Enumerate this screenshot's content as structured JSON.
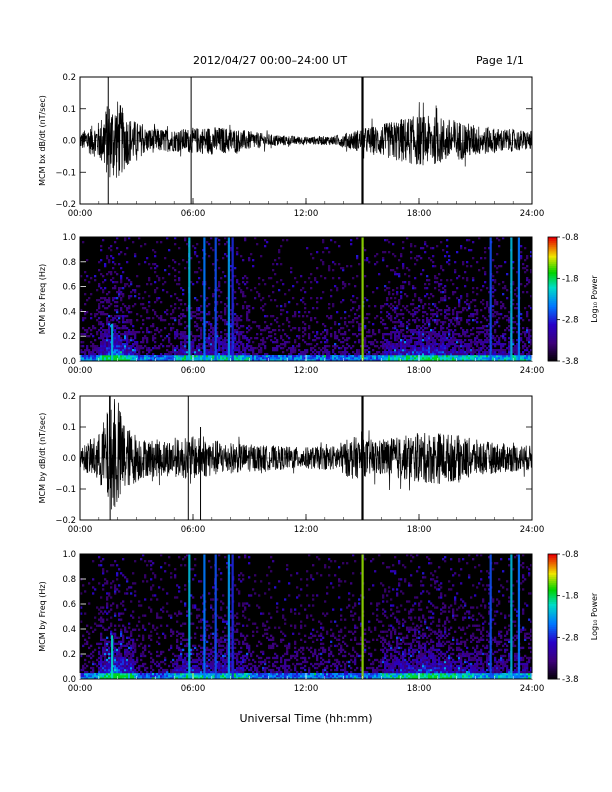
{
  "header": {
    "date_range": "2012/04/27  00:00–24:00 UT",
    "page": "Page 1/1"
  },
  "chart_data": [
    {
      "type": "line",
      "title": "",
      "ylabel": "MCM bx dB/dt (nT/sec)",
      "xlabel": "",
      "xlim": [
        "00:00",
        "24:00"
      ],
      "xticks": [
        "00:00",
        "06:00",
        "12:00",
        "18:00",
        "24:00"
      ],
      "ylim": [
        -0.2,
        0.2
      ],
      "yticks": [
        "0.2",
        "0.1",
        "0.0",
        "−0.1",
        "−0.2"
      ],
      "series_color": "#000000",
      "envelope": [
        {
          "t": 0.0,
          "amp": 0.025
        },
        {
          "t": 1.0,
          "amp": 0.06
        },
        {
          "t": 1.5,
          "amp": 0.12
        },
        {
          "t": 2.0,
          "amp": 0.13
        },
        {
          "t": 2.5,
          "amp": 0.08
        },
        {
          "t": 3.5,
          "amp": 0.04
        },
        {
          "t": 5.0,
          "amp": 0.035
        },
        {
          "t": 6.0,
          "amp": 0.04
        },
        {
          "t": 7.0,
          "amp": 0.045
        },
        {
          "t": 8.0,
          "amp": 0.04
        },
        {
          "t": 9.0,
          "amp": 0.03
        },
        {
          "t": 10.0,
          "amp": 0.02
        },
        {
          "t": 12.0,
          "amp": 0.012
        },
        {
          "t": 13.5,
          "amp": 0.015
        },
        {
          "t": 14.5,
          "amp": 0.03
        },
        {
          "t": 15.0,
          "amp": 0.04
        },
        {
          "t": 16.0,
          "amp": 0.05
        },
        {
          "t": 17.0,
          "amp": 0.07
        },
        {
          "t": 18.0,
          "amp": 0.08
        },
        {
          "t": 19.0,
          "amp": 0.075
        },
        {
          "t": 20.0,
          "amp": 0.065
        },
        {
          "t": 21.0,
          "amp": 0.05
        },
        {
          "t": 22.0,
          "amp": 0.04
        },
        {
          "t": 23.0,
          "amp": 0.035
        },
        {
          "t": 24.0,
          "amp": 0.03
        }
      ],
      "spikes": [
        {
          "t": 1.5,
          "ymin": -0.2,
          "ymax": 0.2
        },
        {
          "t": 5.9,
          "ymin": -0.2,
          "ymax": 0.2
        },
        {
          "t": 15.0,
          "ymin": -0.2,
          "ymax": 0.2
        }
      ]
    },
    {
      "type": "heatmap",
      "title": "",
      "ylabel": "MCM bx Freq (Hz)",
      "xlabel": "",
      "xlim": [
        "00:00",
        "24:00"
      ],
      "xticks": [
        "00:00",
        "06:00",
        "12:00",
        "18:00",
        "24:00"
      ],
      "ylim": [
        0.0,
        1.0
      ],
      "yticks": [
        "1.0",
        "0.8",
        "0.6",
        "0.4",
        "0.2",
        "0.0"
      ],
      "colorbar": {
        "label": "Log₁₀ Power",
        "range": [
          -3.8,
          -0.8
        ],
        "ticks": [
          "-0.8",
          "-1.8",
          "-2.8",
          "-3.8"
        ]
      },
      "stripes": [
        {
          "t": 1.7,
          "level": 0.55,
          "fmax": 0.3
        },
        {
          "t": 5.8,
          "level": 0.55,
          "fmax": 1.0
        },
        {
          "t": 6.6,
          "level": 0.45,
          "fmax": 1.0
        },
        {
          "t": 7.2,
          "level": 0.4,
          "fmax": 1.0
        },
        {
          "t": 7.9,
          "level": 0.5,
          "fmax": 1.0
        },
        {
          "t": 8.1,
          "level": 0.35,
          "fmax": 1.0
        },
        {
          "t": 15.0,
          "level": 0.8,
          "fmax": 1.0
        },
        {
          "t": 21.8,
          "level": 0.4,
          "fmax": 1.0
        },
        {
          "t": 22.9,
          "level": 0.55,
          "fmax": 1.0
        },
        {
          "t": 23.3,
          "level": 0.45,
          "fmax": 1.0
        }
      ]
    },
    {
      "type": "line",
      "title": "",
      "ylabel": "MCM by dB/dt (nT/sec)",
      "xlabel": "",
      "xlim": [
        "00:00",
        "24:00"
      ],
      "xticks": [
        "00:00",
        "06:00",
        "12:00",
        "18:00",
        "24:00"
      ],
      "ylim": [
        -0.2,
        0.2
      ],
      "yticks": [
        "0.2",
        "0.1",
        "0.0",
        "−0.1",
        "−0.2"
      ],
      "series_color": "#000000",
      "envelope": [
        {
          "t": 0.0,
          "amp": 0.03
        },
        {
          "t": 1.0,
          "amp": 0.08
        },
        {
          "t": 1.5,
          "amp": 0.16
        },
        {
          "t": 2.0,
          "amp": 0.18
        },
        {
          "t": 2.5,
          "amp": 0.1
        },
        {
          "t": 3.5,
          "amp": 0.06
        },
        {
          "t": 5.0,
          "amp": 0.06
        },
        {
          "t": 6.0,
          "amp": 0.07
        },
        {
          "t": 7.0,
          "amp": 0.06
        },
        {
          "t": 8.0,
          "amp": 0.05
        },
        {
          "t": 9.0,
          "amp": 0.045
        },
        {
          "t": 10.0,
          "amp": 0.04
        },
        {
          "t": 12.0,
          "amp": 0.035
        },
        {
          "t": 13.5,
          "amp": 0.04
        },
        {
          "t": 14.5,
          "amp": 0.07
        },
        {
          "t": 15.0,
          "amp": 0.06
        },
        {
          "t": 16.0,
          "amp": 0.06
        },
        {
          "t": 17.0,
          "amp": 0.07
        },
        {
          "t": 18.0,
          "amp": 0.08
        },
        {
          "t": 19.0,
          "amp": 0.085
        },
        {
          "t": 20.0,
          "amp": 0.075
        },
        {
          "t": 21.0,
          "amp": 0.06
        },
        {
          "t": 22.0,
          "amp": 0.05
        },
        {
          "t": 23.0,
          "amp": 0.045
        },
        {
          "t": 24.0,
          "amp": 0.04
        }
      ],
      "spikes": [
        {
          "t": 1.6,
          "ymin": -0.2,
          "ymax": 0.2
        },
        {
          "t": 5.75,
          "ymin": -0.2,
          "ymax": 0.2
        },
        {
          "t": 6.4,
          "ymin": -0.2,
          "ymax": 0.1
        },
        {
          "t": 15.0,
          "ymin": -0.2,
          "ymax": 0.2
        }
      ]
    },
    {
      "type": "heatmap",
      "title": "",
      "ylabel": "MCM by Freq (Hz)",
      "xlabel": "Universal Time (hh:mm)",
      "xlim": [
        "00:00",
        "24:00"
      ],
      "xticks": [
        "00:00",
        "06:00",
        "12:00",
        "18:00",
        "24:00"
      ],
      "ylim": [
        0.0,
        1.0
      ],
      "yticks": [
        "1.0",
        "0.8",
        "0.6",
        "0.4",
        "0.2",
        "0.0"
      ],
      "colorbar": {
        "label": "Log₁₀ Power",
        "range": [
          -3.8,
          -0.8
        ],
        "ticks": [
          "-0.8",
          "-1.8",
          "-2.8",
          "-3.8"
        ]
      },
      "stripes": [
        {
          "t": 1.7,
          "level": 0.6,
          "fmax": 0.35
        },
        {
          "t": 5.8,
          "level": 0.55,
          "fmax": 1.0
        },
        {
          "t": 6.6,
          "level": 0.45,
          "fmax": 1.0
        },
        {
          "t": 7.2,
          "level": 0.4,
          "fmax": 1.0
        },
        {
          "t": 7.9,
          "level": 0.5,
          "fmax": 1.0
        },
        {
          "t": 8.1,
          "level": 0.35,
          "fmax": 1.0
        },
        {
          "t": 15.0,
          "level": 0.8,
          "fmax": 1.0
        },
        {
          "t": 21.8,
          "level": 0.4,
          "fmax": 1.0
        },
        {
          "t": 22.9,
          "level": 0.55,
          "fmax": 1.0
        },
        {
          "t": 23.3,
          "level": 0.45,
          "fmax": 1.0
        }
      ]
    }
  ]
}
